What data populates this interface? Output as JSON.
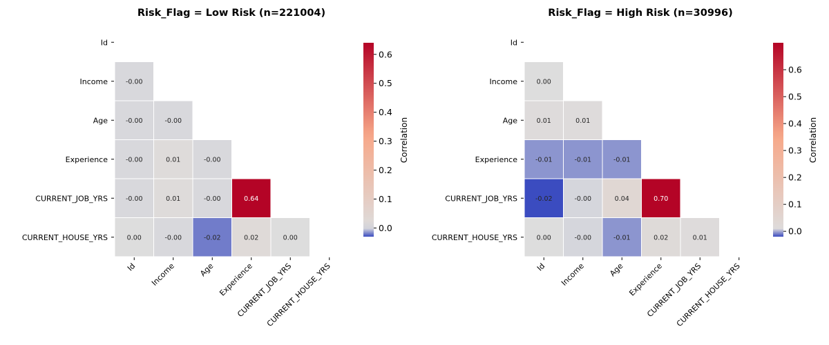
{
  "chart_data": [
    {
      "type": "heatmap",
      "title": "Risk_Flag = Low Risk (n=221004)",
      "variables": [
        "Id",
        "Income",
        "Age",
        "Experience",
        "CURRENT_JOB_YRS",
        "CURRENT_HOUSE_YRS"
      ],
      "triangle": "lower",
      "cells": [
        {
          "row": "Income",
          "col": "Id",
          "value": -0.001,
          "label": "-0.00"
        },
        {
          "row": "Age",
          "col": "Id",
          "value": -0.001,
          "label": "-0.00"
        },
        {
          "row": "Age",
          "col": "Income",
          "value": -0.001,
          "label": "-0.00"
        },
        {
          "row": "Experience",
          "col": "Id",
          "value": -0.001,
          "label": "-0.00"
        },
        {
          "row": "Experience",
          "col": "Income",
          "value": 0.01,
          "label": "0.01"
        },
        {
          "row": "Experience",
          "col": "Age",
          "value": -0.001,
          "label": "-0.00"
        },
        {
          "row": "CURRENT_JOB_YRS",
          "col": "Id",
          "value": -0.001,
          "label": "-0.00"
        },
        {
          "row": "CURRENT_JOB_YRS",
          "col": "Income",
          "value": 0.01,
          "label": "0.01"
        },
        {
          "row": "CURRENT_JOB_YRS",
          "col": "Age",
          "value": -0.001,
          "label": "-0.00"
        },
        {
          "row": "CURRENT_JOB_YRS",
          "col": "Experience",
          "value": 0.64,
          "label": "0.64"
        },
        {
          "row": "CURRENT_HOUSE_YRS",
          "col": "Id",
          "value": 0.001,
          "label": "0.00"
        },
        {
          "row": "CURRENT_HOUSE_YRS",
          "col": "Income",
          "value": -0.001,
          "label": "-0.00"
        },
        {
          "row": "CURRENT_HOUSE_YRS",
          "col": "Age",
          "value": -0.02,
          "label": "-0.02"
        },
        {
          "row": "CURRENT_HOUSE_YRS",
          "col": "Experience",
          "value": 0.02,
          "label": "0.02"
        },
        {
          "row": "CURRENT_HOUSE_YRS",
          "col": "CURRENT_JOB_YRS",
          "value": 0.001,
          "label": "0.00"
        }
      ],
      "colorbar": {
        "label": "Correlation",
        "range": [
          -0.03,
          0.64
        ],
        "ticks": [
          "0.0",
          "0.1",
          "0.2",
          "0.3",
          "0.4",
          "0.5",
          "0.6"
        ],
        "tick_values": [
          0,
          0.1,
          0.2,
          0.3,
          0.4,
          0.5,
          0.6
        ]
      },
      "colormap": "coolwarm",
      "colors": {
        "low": "#3b4cc0",
        "center": "#dddddd",
        "high": "#b40426"
      }
    },
    {
      "type": "heatmap",
      "title": "Risk_Flag = High Risk (n=30996)",
      "variables": [
        "Id",
        "Income",
        "Age",
        "Experience",
        "CURRENT_JOB_YRS",
        "CURRENT_HOUSE_YRS"
      ],
      "triangle": "lower",
      "cells": [
        {
          "row": "Income",
          "col": "Id",
          "value": 0.001,
          "label": "0.00"
        },
        {
          "row": "Age",
          "col": "Id",
          "value": 0.01,
          "label": "0.01"
        },
        {
          "row": "Age",
          "col": "Income",
          "value": 0.01,
          "label": "0.01"
        },
        {
          "row": "Experience",
          "col": "Id",
          "value": -0.01,
          "label": "-0.01"
        },
        {
          "row": "Experience",
          "col": "Income",
          "value": -0.01,
          "label": "-0.01"
        },
        {
          "row": "Experience",
          "col": "Age",
          "value": -0.01,
          "label": "-0.01"
        },
        {
          "row": "CURRENT_JOB_YRS",
          "col": "Id",
          "value": -0.02,
          "label": "-0.02"
        },
        {
          "row": "CURRENT_JOB_YRS",
          "col": "Income",
          "value": -0.001,
          "label": "-0.00"
        },
        {
          "row": "CURRENT_JOB_YRS",
          "col": "Age",
          "value": 0.04,
          "label": "0.04"
        },
        {
          "row": "CURRENT_JOB_YRS",
          "col": "Experience",
          "value": 0.7,
          "label": "0.70"
        },
        {
          "row": "CURRENT_HOUSE_YRS",
          "col": "Id",
          "value": 0.001,
          "label": "0.00"
        },
        {
          "row": "CURRENT_HOUSE_YRS",
          "col": "Income",
          "value": -0.001,
          "label": "-0.00"
        },
        {
          "row": "CURRENT_HOUSE_YRS",
          "col": "Age",
          "value": -0.01,
          "label": "-0.01"
        },
        {
          "row": "CURRENT_HOUSE_YRS",
          "col": "Experience",
          "value": 0.02,
          "label": "0.02"
        },
        {
          "row": "CURRENT_HOUSE_YRS",
          "col": "CURRENT_JOB_YRS",
          "value": 0.01,
          "label": "0.01"
        }
      ],
      "colorbar": {
        "label": "Correlation",
        "range": [
          -0.02,
          0.7
        ],
        "ticks": [
          "0.0",
          "0.1",
          "0.2",
          "0.3",
          "0.4",
          "0.5",
          "0.6"
        ],
        "tick_values": [
          0,
          0.1,
          0.2,
          0.3,
          0.4,
          0.5,
          0.6
        ]
      },
      "colormap": "coolwarm",
      "colors": {
        "low": "#3b4cc0",
        "center": "#dddddd",
        "high": "#b40426"
      }
    }
  ]
}
